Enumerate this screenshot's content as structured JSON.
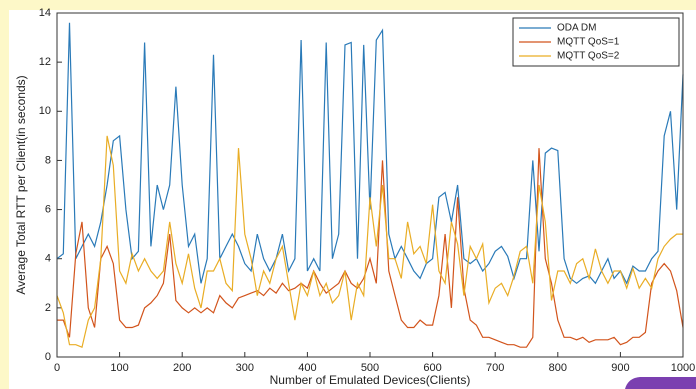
{
  "chart_data": {
    "type": "line",
    "xlabel": "Number of Emulated Devices(Clients)",
    "ylabel": "Average Total RTT per Client(in seconds)",
    "x": [
      0,
      10,
      20,
      30,
      40,
      50,
      60,
      70,
      80,
      90,
      100,
      110,
      120,
      130,
      140,
      150,
      160,
      170,
      180,
      190,
      200,
      210,
      220,
      230,
      240,
      250,
      260,
      270,
      280,
      290,
      300,
      310,
      320,
      330,
      340,
      350,
      360,
      370,
      380,
      390,
      400,
      410,
      420,
      430,
      440,
      450,
      460,
      470,
      480,
      490,
      500,
      510,
      520,
      530,
      540,
      550,
      560,
      570,
      580,
      590,
      600,
      610,
      620,
      630,
      640,
      650,
      660,
      670,
      680,
      690,
      700,
      710,
      720,
      730,
      740,
      750,
      760,
      770,
      780,
      790,
      800,
      810,
      820,
      830,
      840,
      850,
      860,
      870,
      880,
      890,
      900,
      910,
      920,
      930,
      940,
      950,
      960,
      970,
      980,
      990,
      1000
    ],
    "series": [
      {
        "name": "ODA DM",
        "color": "#2a7ab8",
        "values": [
          4,
          4.2,
          13.6,
          4,
          4.5,
          5,
          4.5,
          5.5,
          7,
          8.8,
          9,
          6,
          4,
          4.3,
          12.8,
          4.5,
          7,
          6,
          7,
          11,
          7,
          4.5,
          5,
          3,
          4,
          12.3,
          4,
          4.5,
          5,
          4.5,
          3.8,
          3.5,
          5,
          4,
          3.5,
          4,
          5,
          3.5,
          4,
          12.9,
          3.5,
          4,
          3.5,
          12.8,
          4,
          5,
          12.7,
          12.8,
          4,
          12.7,
          6,
          12.9,
          13.3,
          5,
          4,
          4.5,
          4,
          3.5,
          3.2,
          3.8,
          4,
          6.5,
          6.7,
          5.5,
          7,
          4,
          3.8,
          4,
          3.5,
          3.8,
          4.3,
          4.5,
          4.1,
          3.2,
          4,
          4,
          8,
          4.3,
          8.3,
          8.5,
          8.4,
          4,
          3.2,
          3,
          3.2,
          3.3,
          3,
          3.5,
          4,
          3.2,
          3.5,
          3,
          3.7,
          3.5,
          3.5,
          4,
          4.3,
          9,
          10,
          6,
          11.5
        ]
      },
      {
        "name": "MQTT QoS=1",
        "color": "#d2541c",
        "values": [
          1.5,
          1.5,
          0.8,
          4.2,
          5.5,
          2,
          1.2,
          4,
          4.5,
          3.8,
          1.5,
          1.2,
          1.2,
          1.3,
          2,
          2.2,
          2.5,
          3,
          5,
          2.3,
          2,
          1.8,
          2,
          1.8,
          2,
          1.8,
          2.5,
          2.2,
          2,
          2.4,
          2.5,
          2.6,
          2.7,
          2.5,
          2.8,
          2.6,
          3,
          2.7,
          2.8,
          3,
          2.8,
          3.5,
          3,
          2.6,
          2.8,
          3,
          3.5,
          3,
          2.8,
          3.2,
          4,
          3,
          8,
          3.5,
          2.5,
          1.5,
          1.2,
          1.2,
          1.5,
          1.3,
          1.3,
          2.5,
          5,
          2,
          6.5,
          2.8,
          1.5,
          1.3,
          0.8,
          0.8,
          0.7,
          0.6,
          0.5,
          0.5,
          0.4,
          0.4,
          0.8,
          8.5,
          4,
          3,
          1.5,
          0.8,
          0.8,
          0.7,
          0.8,
          0.6,
          0.7,
          0.7,
          0.7,
          0.8,
          0.5,
          0.6,
          0.8,
          0.8,
          1,
          3,
          3.5,
          3.8,
          3.5,
          2.7,
          1.2
        ]
      },
      {
        "name": "MQTT QoS=2",
        "color": "#e9ad25",
        "values": [
          2.5,
          1.8,
          0.5,
          0.5,
          0.4,
          1.5,
          2,
          4,
          9,
          7.8,
          3.5,
          3,
          4.2,
          3.5,
          4,
          3.5,
          3.2,
          3.5,
          5.5,
          3.8,
          3,
          4.2,
          2.8,
          2,
          3.5,
          3.5,
          4,
          3,
          2.7,
          8.5,
          5,
          4,
          2.5,
          3.5,
          3,
          4,
          4.5,
          3,
          1.5,
          3,
          2.5,
          3.5,
          2.5,
          3,
          2.2,
          2.5,
          3.5,
          1.5,
          3,
          2.5,
          6.5,
          4.5,
          7,
          4,
          4,
          3.2,
          5.5,
          4.2,
          4.5,
          3.8,
          6.2,
          3.5,
          3,
          5.5,
          4.6,
          2.5,
          4.5,
          4,
          4.6,
          2.2,
          2.8,
          3,
          2.5,
          3.3,
          4.3,
          4.5,
          3,
          7,
          5.5,
          2.3,
          3.5,
          3.5,
          3,
          3.8,
          4,
          3.2,
          4.4,
          3.5,
          3,
          3.5,
          3.5,
          2.8,
          3.6,
          2.8,
          3.2,
          2.8,
          4,
          4.5,
          4.8,
          5,
          5
        ]
      }
    ],
    "xlim": [
      0,
      1000
    ],
    "xticks": [
      0,
      100,
      200,
      300,
      400,
      500,
      600,
      700,
      800,
      900,
      1000
    ],
    "ylim": [
      0,
      14
    ],
    "yticks": [
      0,
      2,
      4,
      6,
      8,
      10,
      12,
      14
    ],
    "legend": "upper right"
  }
}
